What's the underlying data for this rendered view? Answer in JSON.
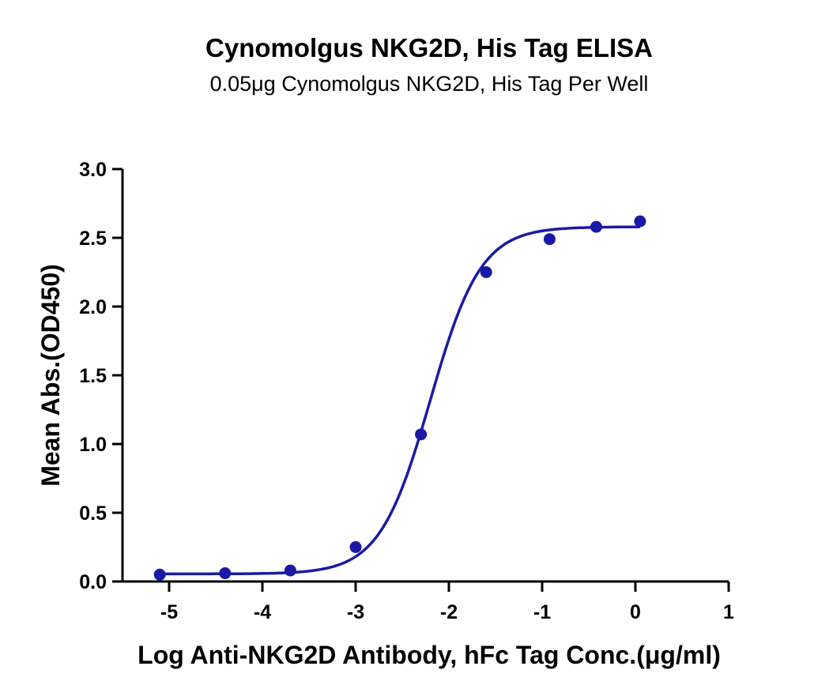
{
  "chart_data": {
    "type": "scatter",
    "title": "Cynomolgus NKG2D, His Tag ELISA",
    "subtitle": "0.05μg Cynomolgus NKG2D, His Tag Per Well",
    "xlabel": "Log Anti-NKG2D Antibody, hFc Tag Conc.(μg/ml)",
    "ylabel": "Mean Abs.(OD450)",
    "xlim": [
      -5.5,
      1
    ],
    "ylim": [
      0,
      3.0
    ],
    "xticks": [
      -5,
      -4,
      -3,
      -2,
      -1,
      0,
      1
    ],
    "yticks": [
      0.0,
      0.5,
      1.0,
      1.5,
      2.0,
      2.5,
      3.0
    ],
    "xtick_labels": [
      "-5",
      "-4",
      "-3",
      "-2",
      "-1",
      "0",
      "1"
    ],
    "ytick_labels": [
      "0.0",
      "0.5",
      "1.0",
      "1.5",
      "2.0",
      "2.5",
      "3.0"
    ],
    "grid": false,
    "color": "#1a1aa6",
    "points": [
      {
        "x": -5.1,
        "y": 0.05
      },
      {
        "x": -4.4,
        "y": 0.06
      },
      {
        "x": -3.7,
        "y": 0.08
      },
      {
        "x": -3.0,
        "y": 0.25
      },
      {
        "x": -2.3,
        "y": 1.07
      },
      {
        "x": -1.6,
        "y": 2.25
      },
      {
        "x": -0.92,
        "y": 2.49
      },
      {
        "x": -0.42,
        "y": 2.58
      },
      {
        "x": 0.05,
        "y": 2.62
      }
    ],
    "fit": {
      "model": "4PL",
      "bottom": 0.055,
      "top": 2.58,
      "logEC50": -2.2,
      "hill": 1.6,
      "x_range": [
        -5.1,
        0.05
      ]
    }
  }
}
